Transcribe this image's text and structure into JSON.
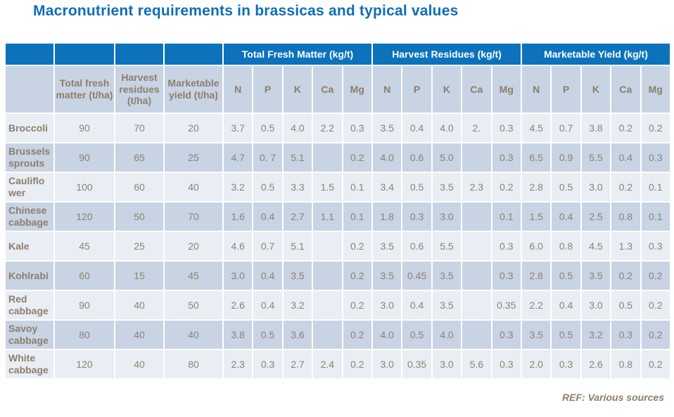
{
  "slide": {
    "title": "Macronutrient requirements in brassicas and typical values",
    "ref": "REF: Various sources"
  },
  "colors": {
    "title_blue": "#0e6eb6",
    "header_band_blue": "#0c72bc",
    "row_light": "#e9edf4",
    "row_dark": "#c8d3e3",
    "text_brown": "#8c7e6c",
    "grid_white": "#ffffff"
  },
  "table": {
    "group_headers": [
      "Total Fresh Matter (kg/t)",
      "Harvest Residues (kg/t)",
      "Marketable Yield (kg/t)"
    ],
    "col_headers": [
      "Total fresh matter (t/ha)",
      "Harvest residues (t/ha)",
      "Marketable yield (t/ha)"
    ],
    "nutrient_headers": [
      "N",
      "P",
      "K",
      "Ca",
      "Mg"
    ],
    "rows": [
      {
        "label": "Broccoli",
        "values": [
          "90",
          "70",
          "20",
          "3.7",
          "0.5",
          "4.0",
          "2.2",
          "0.3",
          "3.5",
          "0.4",
          "4.0",
          "2.",
          "0.3",
          "4.5",
          "0.7",
          "3.8",
          "0.2",
          "0.2"
        ]
      },
      {
        "label": "Brussels sprouts",
        "values": [
          "90",
          "65",
          "25",
          "4.7",
          "0. 7",
          "5.1",
          "",
          "0.2",
          "4.0",
          "0.6",
          "5.0",
          "",
          "0.3",
          "6.5",
          "0.9",
          "5.5",
          "0.4",
          "0.3"
        ]
      },
      {
        "label": "Cauliflower",
        "values": [
          "100",
          "60",
          "40",
          "3.2",
          "0.5",
          "3.3",
          "1.5",
          "0.1",
          "3.4",
          "0.5",
          "3.5",
          "2.3",
          "0.2",
          "2.8",
          "0.5",
          "3.0",
          "0.2",
          "0.1"
        ]
      },
      {
        "label": "Chinese cabbage",
        "values": [
          "120",
          "50",
          "70",
          "1.6",
          "0.4",
          "2.7",
          "1.1",
          "0.1",
          "1.8",
          "0.3",
          "3.0",
          "",
          "0.1",
          "1.5",
          "0.4",
          "2.5",
          "0.8",
          "0.1"
        ]
      },
      {
        "label": "Kale",
        "values": [
          "45",
          "25",
          "20",
          "4.6",
          "0.7",
          "5.1",
          "",
          "0.2",
          "3.5",
          "0.6",
          "5.5",
          "",
          "0.3",
          "6.0",
          "0.8",
          "4.5",
          "1.3",
          "0.3"
        ]
      },
      {
        "label": "Kohlrabi",
        "values": [
          "60",
          "15",
          "45",
          "3.0",
          "0.4",
          "3.5",
          "",
          "0.2",
          "3.5",
          "0.45",
          "3.5",
          "",
          "0.3",
          "2.8",
          "0.5",
          "3.5",
          "0.2",
          "0.2"
        ]
      },
      {
        "label": "Red cabbage",
        "values": [
          "90",
          "40",
          "50",
          "2.6",
          "0.4",
          "3.2",
          "",
          "0.2",
          "3.0",
          "0.4",
          "3.5",
          "",
          "0.35",
          "2.2",
          "0.4",
          "3.0",
          "0.5",
          "0.2"
        ]
      },
      {
        "label": "Savoy cabbage",
        "values": [
          "80",
          "40",
          "40",
          "3.8",
          "0.5",
          "3.6",
          "",
          "0.2",
          "4.0",
          "0.5",
          "4.0",
          "",
          "0.3",
          "3.5",
          "0.5",
          "3.2",
          "0.3",
          "0.2"
        ]
      },
      {
        "label": "White cabbage",
        "values": [
          "120",
          "40",
          "80",
          "2.3",
          "0.3",
          "2.7",
          "2.4",
          "0.2",
          "3.0",
          "0.35",
          "3.0",
          "5.6",
          "0.3",
          "2.0",
          "0.3",
          "2.6",
          "0.8",
          "0.2"
        ]
      }
    ]
  }
}
